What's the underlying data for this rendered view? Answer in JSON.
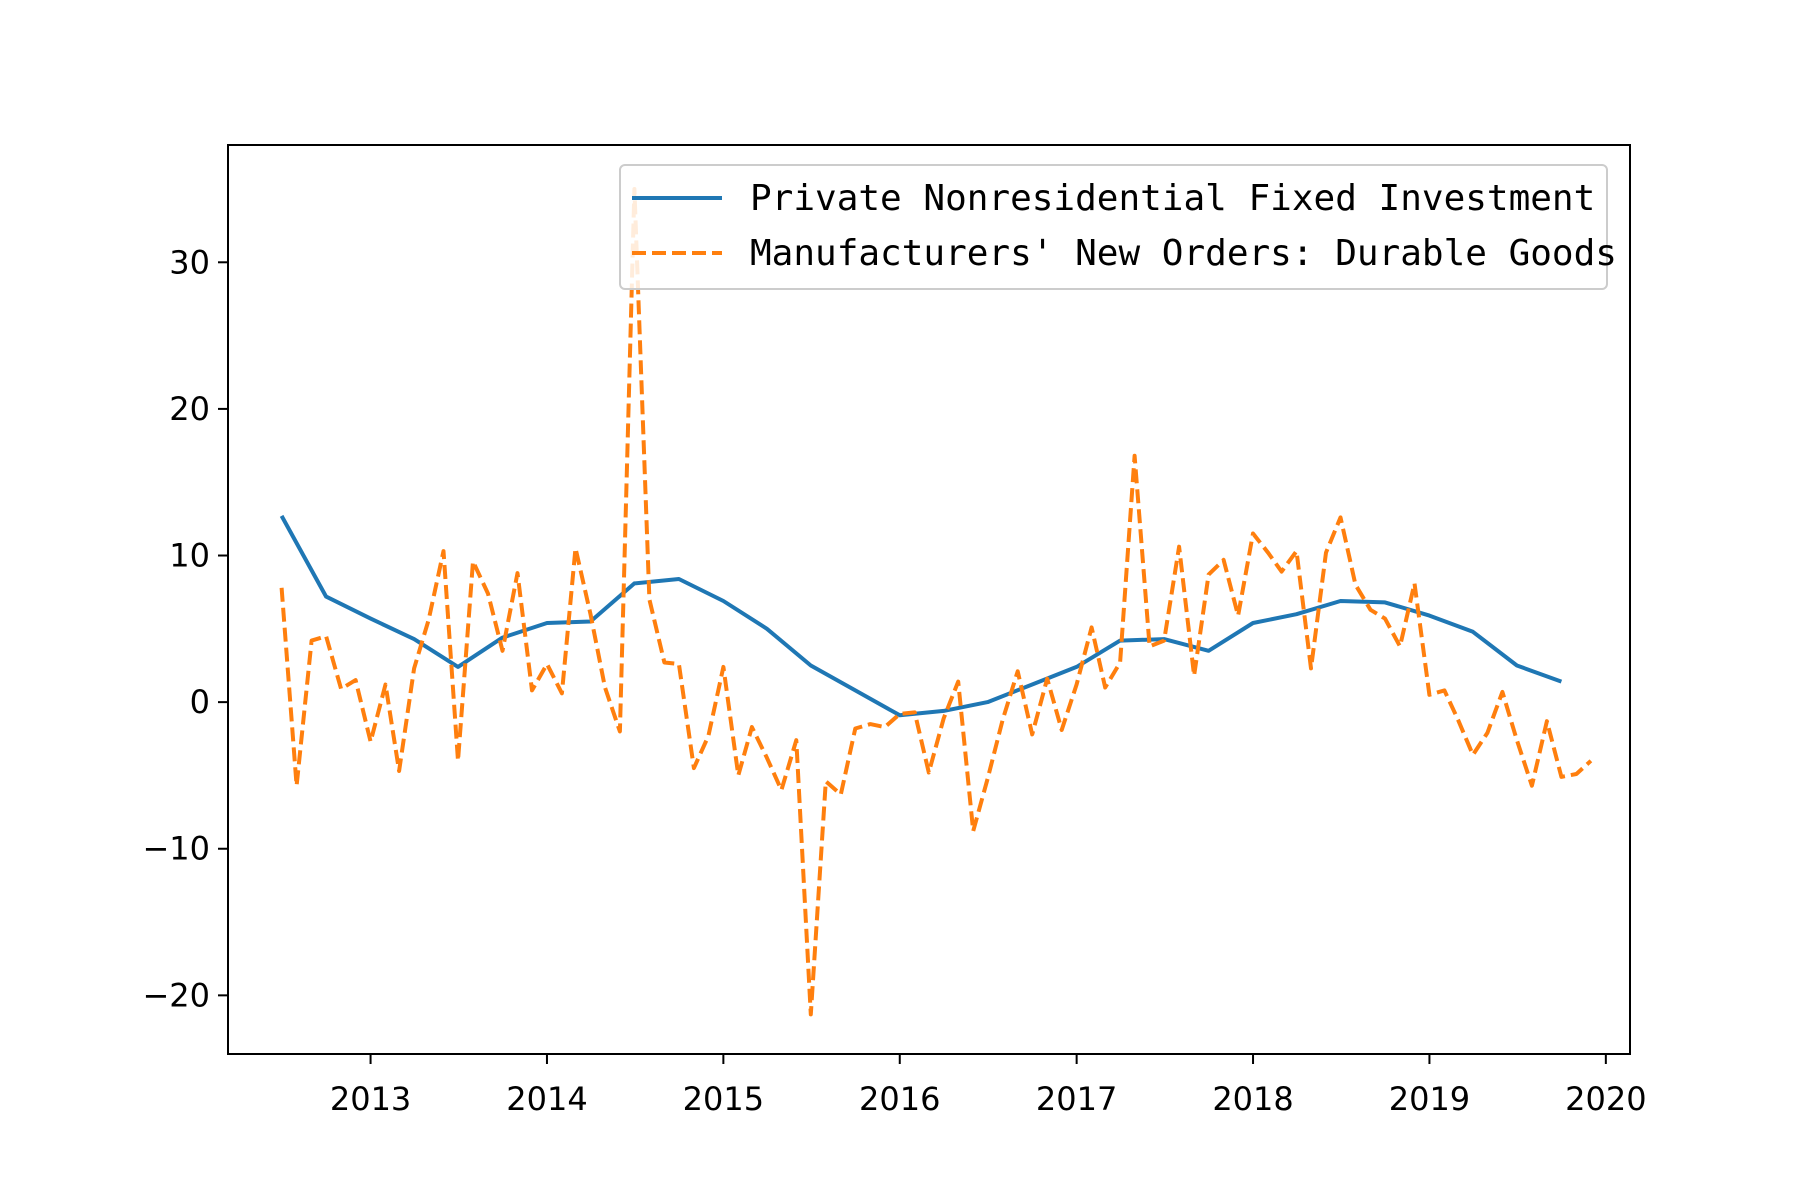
{
  "colors": {
    "series_1": "#1f77b4",
    "series_2": "#ff7f0e",
    "axes": "#000000",
    "background": "#ffffff"
  },
  "chart_data": {
    "type": "line",
    "title": "",
    "xlabel": "",
    "ylabel": "",
    "xlim": [
      "2012-03-12",
      "2020-02-20"
    ],
    "ylim": [
      -24,
      38
    ],
    "x_ticks": [
      "2013",
      "2014",
      "2015",
      "2016",
      "2017",
      "2018",
      "2019",
      "2020"
    ],
    "y_ticks": [
      -20,
      -10,
      0,
      10,
      20,
      30
    ],
    "y_tick_labels": [
      "−20",
      "−10",
      "0",
      "10",
      "20",
      "30"
    ],
    "grid": false,
    "legend_position": "top-right",
    "series": [
      {
        "name": "Private Nonresidential Fixed Investment",
        "style": "solid",
        "x": [
          "2012-07-01",
          "2012-10-01",
          "2013-01-01",
          "2013-04-01",
          "2013-07-01",
          "2013-10-01",
          "2014-01-01",
          "2014-04-01",
          "2014-07-01",
          "2014-10-01",
          "2015-01-01",
          "2015-04-01",
          "2015-07-01",
          "2015-10-01",
          "2016-01-01",
          "2016-04-01",
          "2016-07-01",
          "2016-10-01",
          "2017-01-01",
          "2017-04-01",
          "2017-07-01",
          "2017-10-01",
          "2018-01-01",
          "2018-04-01",
          "2018-07-01",
          "2018-10-01",
          "2019-01-01",
          "2019-04-01",
          "2019-07-01",
          "2019-10-01"
        ],
        "y": [
          12.7,
          7.2,
          5.7,
          4.3,
          2.4,
          4.4,
          5.4,
          5.5,
          8.1,
          8.4,
          6.9,
          5.0,
          2.5,
          0.8,
          -0.9,
          -0.6,
          0.0,
          1.2,
          2.4,
          4.2,
          4.3,
          3.5,
          5.4,
          6.0,
          6.9,
          6.8,
          5.9,
          4.8,
          2.5,
          1.4
        ]
      },
      {
        "name": "Manufacturers' New Orders: Durable Goods",
        "style": "dashed",
        "x": [
          "2012-07-01",
          "2012-08-01",
          "2012-09-01",
          "2012-10-01",
          "2012-11-01",
          "2012-12-01",
          "2013-01-01",
          "2013-02-01",
          "2013-03-01",
          "2013-04-01",
          "2013-05-01",
          "2013-06-01",
          "2013-07-01",
          "2013-08-01",
          "2013-09-01",
          "2013-10-01",
          "2013-11-01",
          "2013-12-01",
          "2014-01-01",
          "2014-02-01",
          "2014-03-01",
          "2014-04-01",
          "2014-05-01",
          "2014-06-01",
          "2014-07-01",
          "2014-08-01",
          "2014-09-01",
          "2014-10-01",
          "2014-11-01",
          "2014-12-01",
          "2015-01-01",
          "2015-02-01",
          "2015-03-01",
          "2015-04-01",
          "2015-05-01",
          "2015-06-01",
          "2015-07-01",
          "2015-08-01",
          "2015-09-01",
          "2015-10-01",
          "2015-11-01",
          "2015-12-01",
          "2016-01-01",
          "2016-02-01",
          "2016-03-01",
          "2016-04-01",
          "2016-05-01",
          "2016-06-01",
          "2016-07-01",
          "2016-08-01",
          "2016-09-01",
          "2016-10-01",
          "2016-11-01",
          "2016-12-01",
          "2017-01-01",
          "2017-02-01",
          "2017-03-01",
          "2017-04-01",
          "2017-05-01",
          "2017-06-01",
          "2017-07-01",
          "2017-08-01",
          "2017-09-01",
          "2017-10-01",
          "2017-11-01",
          "2017-12-01",
          "2018-01-01",
          "2018-02-01",
          "2018-03-01",
          "2018-04-01",
          "2018-05-01",
          "2018-06-01",
          "2018-07-01",
          "2018-08-01",
          "2018-09-01",
          "2018-10-01",
          "2018-11-01",
          "2018-12-01",
          "2019-01-01",
          "2019-02-01",
          "2019-03-01",
          "2019-04-01",
          "2019-05-01",
          "2019-06-01",
          "2019-07-01",
          "2019-08-01",
          "2019-09-01",
          "2019-10-01",
          "2019-11-01",
          "2019-12-01"
        ],
        "y": [
          7.8,
          -5.7,
          4.2,
          4.5,
          0.9,
          1.5,
          -2.7,
          1.2,
          -4.7,
          2.3,
          5.6,
          10.3,
          -4.0,
          9.6,
          7.4,
          3.5,
          8.8,
          0.8,
          2.6,
          0.6,
          10.5,
          6.0,
          1.0,
          -2.0,
          35.0,
          7.0,
          2.7,
          2.6,
          -4.5,
          -2.3,
          2.4,
          -5.0,
          -1.7,
          -3.8,
          -6.0,
          -2.6,
          -21.3,
          -5.4,
          -6.3,
          -1.8,
          -1.5,
          -1.7,
          -0.8,
          -0.7,
          -4.8,
          -1.1,
          1.4,
          -8.8,
          -5.2,
          -1.2,
          2.1,
          -2.2,
          1.6,
          -1.9,
          1.2,
          5.1,
          1.0,
          2.7,
          16.8,
          3.8,
          4.2,
          10.6,
          1.8,
          8.7,
          9.7,
          5.9,
          11.5,
          10.2,
          8.9,
          10.3,
          2.3,
          10.2,
          12.6,
          8.0,
          6.3,
          5.7,
          3.8,
          8.1,
          0.5,
          0.8,
          -1.2,
          -3.6,
          -2.1,
          0.7,
          -2.6,
          -5.7,
          -1.3,
          -5.1,
          -4.9,
          -4.0
        ]
      }
    ]
  }
}
